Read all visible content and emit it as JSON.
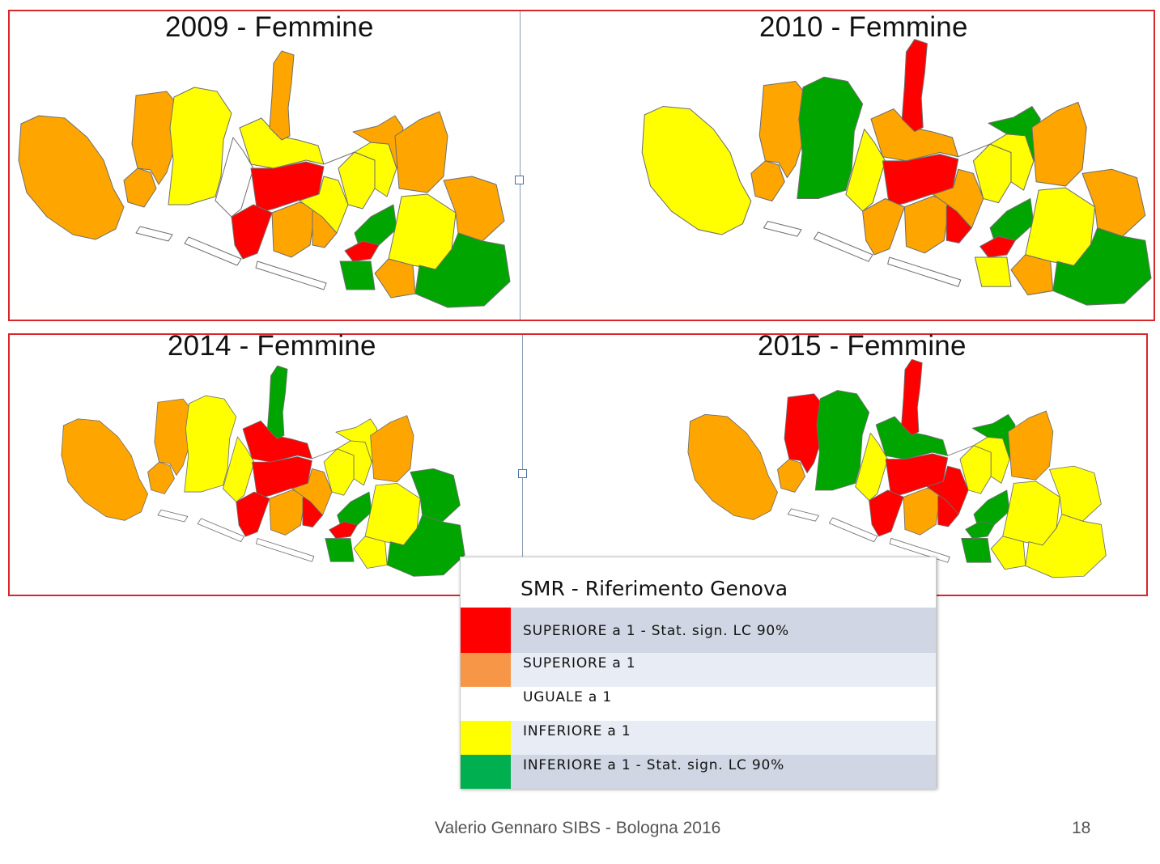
{
  "colors": {
    "red": "#ff0000",
    "orange": "#ffa500",
    "white": "#ffffff",
    "yellow": "#ffff00",
    "green": "#00a500",
    "frame": "#d9262b"
  },
  "maps": [
    {
      "title": "2009 - Femmine",
      "districts": [
        "orange",
        "orange",
        "orange",
        "yellow",
        "white",
        "yellow",
        "orange",
        "red",
        "red",
        "orange",
        "orange",
        "yellow",
        "yellow",
        "yellow",
        "orange",
        "green",
        "red",
        "green",
        "orange",
        "yellow",
        "orange",
        "orange",
        "green"
      ]
    },
    {
      "title": "2010 - Femmine",
      "districts": [
        "yellow",
        "orange",
        "orange",
        "green",
        "yellow",
        "orange",
        "red",
        "red",
        "orange",
        "orange",
        "red",
        "orange",
        "yellow",
        "yellow",
        "green",
        "green",
        "red",
        "yellow",
        "orange",
        "yellow",
        "orange",
        "orange",
        "green"
      ]
    },
    {
      "title": "2014 - Femmine",
      "districts": [
        "orange",
        "orange",
        "orange",
        "yellow",
        "yellow",
        "red",
        "green",
        "red",
        "red",
        "orange",
        "red",
        "orange",
        "yellow",
        "yellow",
        "yellow",
        "green",
        "red",
        "green",
        "orange",
        "yellow",
        "yellow",
        "green",
        "green"
      ]
    },
    {
      "title": "2015 - Femmine",
      "districts": [
        "orange",
        "orange",
        "red",
        "green",
        "yellow",
        "green",
        "red",
        "red",
        "red",
        "orange",
        "red",
        "red",
        "yellow",
        "yellow",
        "green",
        "green",
        "green",
        "green",
        "orange",
        "yellow",
        "yellow",
        "yellow",
        "yellow"
      ]
    }
  ],
  "legend": {
    "title": "SMR - Riferimento Genova",
    "items": [
      {
        "label": "SUPERIORE a 1 - Stat. sign. LC 90%",
        "color": "#ff0000",
        "row_bg": "#d0d6e3"
      },
      {
        "label": "SUPERIORE a 1",
        "color": "#f79646",
        "row_bg": "#e8ecf4"
      },
      {
        "label": "UGUALE a 1",
        "color": "#ffffff",
        "row_bg": "#ffffff"
      },
      {
        "label": "INFERIORE a 1",
        "color": "#ffff00",
        "row_bg": "#e8ecf4"
      },
      {
        "label": "INFERIORE a 1  - Stat. sign. LC 90%",
        "color": "#00b050",
        "row_bg": "#d0d6e3"
      }
    ]
  },
  "footer": {
    "author": "Valerio Gennaro SIBS - Bologna 2016",
    "page_number": "18"
  }
}
